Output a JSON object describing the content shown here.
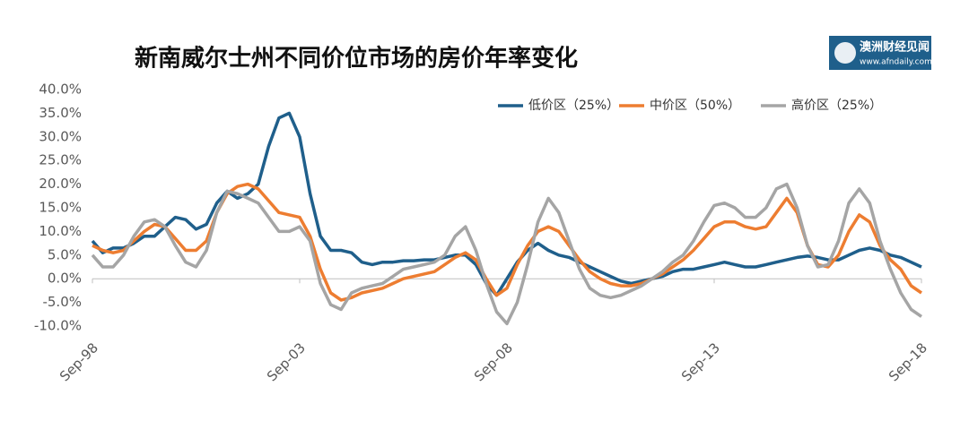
{
  "chart_data": {
    "type": "line",
    "title": "新南威尔士州不同价位市场的房价年率变化",
    "logo": {
      "name": "澳洲财经见闻",
      "url": "www.afndaily.com"
    },
    "x": [
      1998.75,
      1999,
      1999.25,
      1999.5,
      1999.75,
      2000,
      2000.25,
      2000.5,
      2000.75,
      2001,
      2001.25,
      2001.5,
      2001.75,
      2002,
      2002.25,
      2002.5,
      2002.75,
      2003,
      2003.25,
      2003.5,
      2003.75,
      2004,
      2004.25,
      2004.5,
      2004.75,
      2005,
      2005.25,
      2005.5,
      2005.75,
      2006,
      2006.25,
      2006.5,
      2006.75,
      2007,
      2007.25,
      2007.5,
      2007.75,
      2008,
      2008.25,
      2008.5,
      2008.75,
      2009,
      2009.25,
      2009.5,
      2009.75,
      2010,
      2010.25,
      2010.5,
      2010.75,
      2011,
      2011.25,
      2011.5,
      2011.75,
      2012,
      2012.25,
      2012.5,
      2012.75,
      2013,
      2013.25,
      2013.5,
      2013.75,
      2014,
      2014.25,
      2014.5,
      2014.75,
      2015,
      2015.25,
      2015.5,
      2015.75,
      2016,
      2016.25,
      2016.5,
      2016.75,
      2017,
      2017.25,
      2017.5,
      2017.75,
      2018,
      2018.25,
      2018.5,
      2018.75
    ],
    "series": [
      {
        "name": "低价区（25%）",
        "color": "#1f5f8b",
        "values": [
          8,
          5.5,
          6.5,
          6.5,
          7.5,
          9,
          9,
          11,
          13,
          12.5,
          10.5,
          11.5,
          16,
          18.5,
          17,
          18,
          20,
          28,
          34,
          35,
          30,
          18,
          9,
          6,
          6,
          5.5,
          3.5,
          3,
          3.5,
          3.5,
          3.8,
          3.8,
          4,
          4,
          4.5,
          5,
          5,
          3,
          -1,
          -3.5,
          0,
          3.5,
          6,
          7.5,
          6,
          5,
          4.5,
          3.5,
          2.5,
          1.5,
          0.5,
          -0.5,
          -1,
          -0.5,
          0,
          0.5,
          1.5,
          2,
          2,
          2.5,
          3,
          3.5,
          3,
          2.5,
          2.5,
          3,
          3.5,
          4,
          4.5,
          4.8,
          4.5,
          4,
          4,
          5,
          6,
          6.5,
          6,
          5,
          4.5,
          3.5,
          2.5
        ]
      },
      {
        "name": "中价区（50%）",
        "color": "#ed7d31",
        "values": [
          7,
          6,
          5.5,
          6,
          8,
          10,
          11.5,
          11,
          8.5,
          6,
          6,
          8,
          14,
          18,
          19.5,
          20,
          19,
          16.5,
          14,
          13.5,
          13,
          9,
          2,
          -3,
          -4.5,
          -4,
          -3,
          -2.5,
          -2,
          -1,
          0,
          0.5,
          1,
          1.5,
          3,
          4.5,
          5.5,
          4,
          0,
          -3.5,
          -2,
          3,
          7,
          10,
          11,
          10,
          7,
          4,
          1.5,
          0,
          -1,
          -1.5,
          -1.5,
          -1,
          0,
          1,
          2.5,
          4,
          6,
          8.5,
          11,
          12,
          12,
          11,
          10.5,
          11,
          14,
          17,
          14,
          7,
          3,
          2.5,
          5,
          10,
          13.5,
          12,
          7,
          4,
          2,
          -1.5,
          -3
        ]
      },
      {
        "name": "高价区（25%）",
        "color": "#a5a5a5",
        "values": [
          5,
          2.5,
          2.5,
          5,
          9,
          12,
          12.5,
          11,
          7,
          3.5,
          2.5,
          6,
          14,
          18.5,
          18,
          17,
          16,
          13,
          10,
          10,
          11,
          8,
          -1,
          -5.5,
          -6.5,
          -3,
          -2,
          -1.5,
          -1,
          0.5,
          2,
          2.5,
          3,
          3.5,
          5,
          9,
          11,
          6,
          -1,
          -7,
          -9.5,
          -5,
          3,
          12,
          17,
          14,
          8,
          2,
          -2,
          -3.5,
          -4,
          -3.5,
          -2.5,
          -1.5,
          0,
          1.5,
          3.5,
          5,
          8,
          12,
          15.5,
          16,
          15,
          13,
          13,
          15,
          19,
          20,
          15,
          7,
          2.5,
          3,
          8,
          16,
          19,
          16,
          8,
          2,
          -3,
          -6.5,
          -8
        ]
      }
    ],
    "xlim": [
      1998.75,
      2018.75
    ],
    "xticks": [
      {
        "value": 1998.75,
        "label": "Sep-98"
      },
      {
        "value": 2003.75,
        "label": "Sep-03"
      },
      {
        "value": 2008.75,
        "label": "Sep-08"
      },
      {
        "value": 2013.75,
        "label": "Sep-13"
      },
      {
        "value": 2018.75,
        "label": "Sep-18"
      }
    ],
    "ylim": [
      -10,
      40
    ],
    "yticks": [
      {
        "value": -10,
        "label": "-10.0%"
      },
      {
        "value": -5,
        "label": "-5.0%"
      },
      {
        "value": 0,
        "label": "0.0%"
      },
      {
        "value": 5,
        "label": "5.0%"
      },
      {
        "value": 10,
        "label": "10.0%"
      },
      {
        "value": 15,
        "label": "15.0%"
      },
      {
        "value": 20,
        "label": "20.0%"
      },
      {
        "value": 25,
        "label": "25.0%"
      },
      {
        "value": 30,
        "label": "30.0%"
      },
      {
        "value": 35,
        "label": "35.0%"
      },
      {
        "value": 40,
        "label": "40.0%"
      }
    ],
    "legend": "top-right"
  }
}
